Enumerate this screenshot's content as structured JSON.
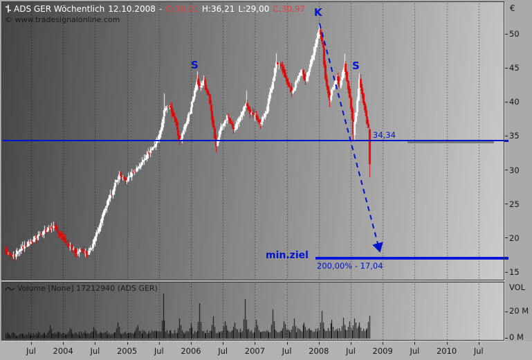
{
  "chart": {
    "title": {
      "symbol": "ADS GER Wöchentlich",
      "date": "12.10.2008",
      "sep": "-",
      "open": "O:36,01",
      "high": "H:36,21",
      "low": "L:29,00",
      "close": "C:30,97"
    },
    "watermark": "© www.tradesignalonline.com",
    "annotations": {
      "left_shoulder": "S",
      "head": "K",
      "right_shoulder": "S",
      "neckline_value": "34,34",
      "target_label": "min.ziel",
      "target_detail": "200,00% - 17,04"
    }
  },
  "volume_pane": {
    "header": "Volume [None] 17212940 (ADS GER)",
    "axis_title": "VOL"
  },
  "axes": {
    "currency": "€",
    "y_ticks": [
      "50",
      "45",
      "40",
      "35",
      "30",
      "25",
      "20",
      "15"
    ],
    "x_ticks": [
      "Jul",
      "2004",
      "Jul",
      "2005",
      "Jul",
      "2006",
      "Jul",
      "2007",
      "Jul",
      "2008",
      "Jul",
      "2009",
      "Jul",
      "2010",
      "Jul"
    ],
    "volume_ticks": [
      "20 M",
      "0 M"
    ]
  },
  "colors": {
    "up_candle": "#ffffff",
    "down_candle": "#dc0a0a",
    "volume_bar": "#0d0d0d",
    "accent_blue": "#0013cc",
    "target_blue": "#0016dd",
    "title_red": "#e04545"
  },
  "chart_data": [
    {
      "type": "candlestick",
      "symbol": "ADS GER",
      "timeframe": "weekly (Wöchentlich)",
      "unit": "€",
      "title": "ADS GER Wöchentlich",
      "y_axis_ticks": [
        50,
        45,
        40,
        35,
        30,
        25,
        20,
        15
      ],
      "x_axis_ticks": [
        "Jul",
        "2004",
        "Jul",
        "2005",
        "Jul",
        "2006",
        "Jul",
        "2007",
        "Jul",
        "2008",
        "Jul",
        "2009",
        "Jul",
        "2010",
        "Jul"
      ],
      "y_range_eur": [
        14.6,
        52.0
      ],
      "grid": "vertical-dotted",
      "pattern": "head-and-shoulders (S-K-S)",
      "neckline_eur": 34.34,
      "target_eur": 17.04,
      "target_percent_label": "200,00%",
      "last_candle": {
        "date": "12.10.2008",
        "o": 36.01,
        "h": 36.21,
        "l": 29.0,
        "c": 30.97
      },
      "n_weeks": 290,
      "weekly_close_anchors_w_c_h_l": [
        [
          0,
          18.0,
          null,
          null
        ],
        [
          4,
          17.4,
          null,
          null
        ],
        [
          7,
          17.2,
          null,
          16.6
        ],
        [
          12,
          18.4,
          null,
          null
        ],
        [
          20,
          19.5,
          null,
          null
        ],
        [
          26,
          20.4,
          null,
          null
        ],
        [
          30,
          21.0,
          null,
          null
        ],
        [
          38,
          21.8,
          22.4,
          null
        ],
        [
          43,
          20.6,
          null,
          null
        ],
        [
          48,
          19.2,
          null,
          null
        ],
        [
          52,
          18.6,
          null,
          null
        ],
        [
          56,
          17.8,
          null,
          17.1
        ],
        [
          60,
          18.3,
          null,
          null
        ],
        [
          65,
          17.6,
          null,
          17.0
        ],
        [
          70,
          19.5,
          null,
          null
        ],
        [
          75,
          22.2,
          null,
          null
        ],
        [
          79,
          24.4,
          null,
          null
        ],
        [
          85,
          27.0,
          null,
          null
        ],
        [
          90,
          29.3,
          29.9,
          null
        ],
        [
          95,
          28.4,
          null,
          null
        ],
        [
          101,
          29.6,
          null,
          null
        ],
        [
          107,
          30.8,
          null,
          null
        ],
        [
          112,
          32.2,
          null,
          null
        ],
        [
          118,
          33.5,
          null,
          null
        ],
        [
          122,
          35.2,
          null,
          null
        ],
        [
          126,
          38.8,
          41.2,
          null
        ],
        [
          130,
          39.4,
          null,
          null
        ],
        [
          134,
          37.6,
          null,
          null
        ],
        [
          138,
          34.4,
          null,
          33.8
        ],
        [
          142,
          36.2,
          null,
          null
        ],
        [
          147,
          39.2,
          null,
          null
        ],
        [
          152,
          43.4,
          44.5,
          null
        ],
        [
          154,
          42.2,
          null,
          null
        ],
        [
          157,
          43.2,
          null,
          null
        ],
        [
          161,
          41.0,
          null,
          null
        ],
        [
          165,
          36.2,
          null,
          null
        ],
        [
          167,
          33.5,
          null,
          32.6
        ],
        [
          171,
          36.4,
          null,
          null
        ],
        [
          176,
          37.7,
          null,
          null
        ],
        [
          181,
          35.9,
          null,
          null
        ],
        [
          186,
          37.8,
          null,
          null
        ],
        [
          191,
          39.8,
          41.7,
          null
        ],
        [
          194,
          38.2,
          null,
          null
        ],
        [
          198,
          38.0,
          null,
          null
        ],
        [
          202,
          36.8,
          null,
          36.0
        ],
        [
          207,
          38.6,
          null,
          null
        ],
        [
          212,
          43.0,
          null,
          null
        ],
        [
          215,
          45.8,
          47.2,
          null
        ],
        [
          219,
          45.2,
          null,
          null
        ],
        [
          222,
          43.6,
          null,
          null
        ],
        [
          227,
          41.4,
          null,
          40.6
        ],
        [
          231,
          43.2,
          null,
          null
        ],
        [
          235,
          44.7,
          null,
          null
        ],
        [
          238,
          43.1,
          null,
          null
        ],
        [
          242,
          45.5,
          null,
          null
        ],
        [
          246,
          48.6,
          null,
          null
        ],
        [
          249,
          50.6,
          51.4,
          null
        ],
        [
          252,
          48.0,
          null,
          null
        ],
        [
          254,
          43.4,
          null,
          null
        ],
        [
          257,
          40.2,
          null,
          39.2
        ],
        [
          259,
          41.8,
          null,
          null
        ],
        [
          263,
          43.8,
          null,
          null
        ],
        [
          265,
          42.2,
          null,
          null
        ],
        [
          269,
          45.6,
          47.0,
          null
        ],
        [
          270,
          44.4,
          null,
          null
        ],
        [
          274,
          39.0,
          null,
          null
        ],
        [
          276,
          35.2,
          null,
          34.4
        ],
        [
          279,
          40.2,
          null,
          null
        ],
        [
          281,
          43.4,
          44.2,
          null
        ],
        [
          283,
          41.2,
          null,
          null
        ],
        [
          285,
          38.8,
          null,
          null
        ],
        [
          287,
          36.8,
          null,
          null
        ],
        [
          288,
          36.2,
          null,
          null
        ],
        [
          289,
          30.97,
          null,
          null
        ]
      ]
    },
    {
      "type": "bar",
      "name": "Volume",
      "unit": "M shares",
      "axis_title": "VOL",
      "y_ticks_m": [
        20,
        0
      ],
      "last_value_shares": 17212940,
      "typical_weekly_range_m": [
        2,
        9
      ],
      "volume_spikes_w_m": [
        [
          35,
          10
        ],
        [
          51,
          8
        ],
        [
          70,
          9
        ],
        [
          89,
          12
        ],
        [
          105,
          10
        ],
        [
          125,
          34
        ],
        [
          138,
          15
        ],
        [
          147,
          12
        ],
        [
          154,
          27
        ],
        [
          165,
          17
        ],
        [
          174,
          13
        ],
        [
          182,
          12
        ],
        [
          190,
          30
        ],
        [
          199,
          14
        ],
        [
          212,
          22
        ],
        [
          221,
          13
        ],
        [
          229,
          15
        ],
        [
          237,
          12
        ],
        [
          251,
          21
        ],
        [
          259,
          14
        ],
        [
          268,
          16
        ],
        [
          273,
          13
        ],
        [
          277,
          15
        ],
        [
          281,
          12
        ],
        [
          289,
          17.2
        ]
      ]
    }
  ]
}
